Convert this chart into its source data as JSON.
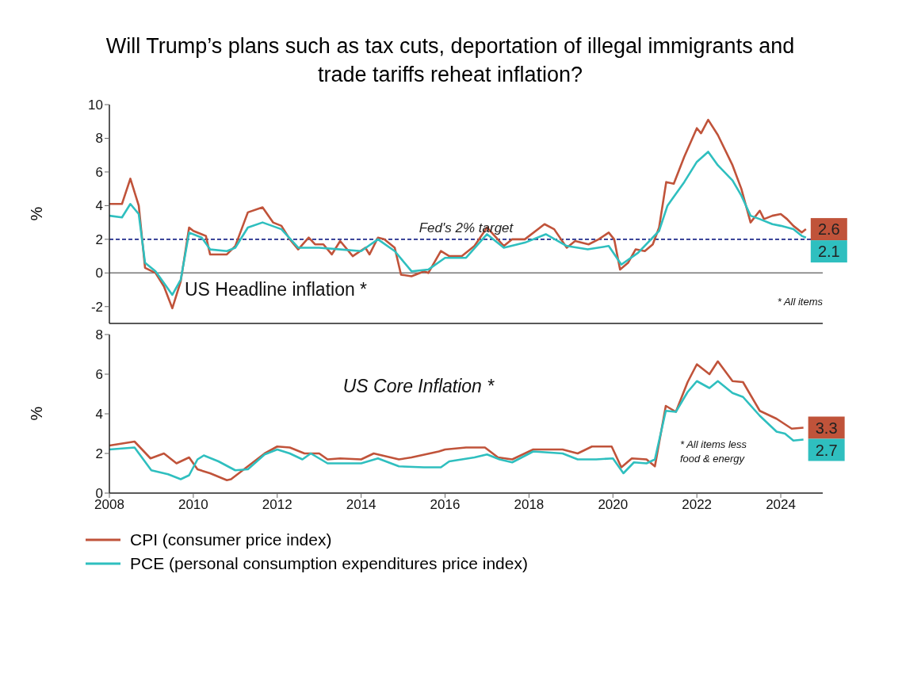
{
  "chart_data": [
    {
      "type": "line",
      "title": "Will Trump’s plans such as tax cuts, deportation of illegal immigrants and trade tariffs reheat inflation?",
      "ylabel": "%",
      "xlim": [
        2008,
        2025
      ],
      "xticks": [
        2008,
        2010,
        2012,
        2014,
        2016,
        2018,
        2020,
        2022,
        2024
      ],
      "ylim": [
        -3,
        10
      ],
      "yticks": [
        -2,
        0,
        2,
        4,
        6,
        8,
        10
      ],
      "tick_labels": "y",
      "legend": false,
      "ref_lines": [
        {
          "axis": "y",
          "value": 2,
          "label": "Fed's 2% target",
          "color": "#1f2a8a",
          "line_style": "dashed"
        },
        {
          "axis": "y",
          "value": 0,
          "label": null,
          "color": "#777777",
          "line_style": "solid"
        }
      ],
      "annotations": [
        "US Headline inflation *",
        "* All items"
      ],
      "series": [
        {
          "color": "#c0533a",
          "x": [
            2008.0,
            2008.3,
            2008.5,
            2008.7,
            2008.85,
            2009.1,
            2009.3,
            2009.5,
            2009.7,
            2009.9,
            2010.0,
            2010.2,
            2010.3,
            2010.4,
            2010.8,
            2011.0,
            2011.3,
            2011.65,
            2011.9,
            2012.1,
            2012.3,
            2012.5,
            2012.75,
            2012.9,
            2013.1,
            2013.3,
            2013.5,
            2013.8,
            2014.1,
            2014.2,
            2014.4,
            2014.55,
            2014.8,
            2014.95,
            2015.2,
            2015.5,
            2015.6,
            2015.9,
            2016.1,
            2016.4,
            2016.7,
            2017.0,
            2017.4,
            2017.6,
            2017.9,
            2018.37,
            2018.6,
            2018.9,
            2019.1,
            2019.42,
            2019.66,
            2019.9,
            2020.03,
            2020.17,
            2020.36,
            2020.54,
            2020.76,
            2020.95,
            2021.1,
            2021.27,
            2021.45,
            2021.7,
            2022.0,
            2022.1,
            2022.27,
            2022.5,
            2022.85,
            2023.06,
            2023.28,
            2023.5,
            2023.6,
            2023.8,
            2024.0,
            2024.15,
            2024.3,
            2024.5,
            2024.6
          ],
          "values": [
            4.1,
            4.1,
            5.6,
            4.0,
            0.3,
            0.0,
            -0.8,
            -2.1,
            -0.5,
            2.7,
            2.5,
            2.3,
            2.2,
            1.1,
            1.1,
            1.6,
            3.6,
            3.9,
            3.0,
            2.8,
            2.0,
            1.4,
            2.1,
            1.7,
            1.7,
            1.1,
            1.9,
            1.0,
            1.5,
            1.1,
            2.1,
            2.0,
            1.5,
            -0.1,
            -0.2,
            0.1,
            0.0,
            1.3,
            1.0,
            1.0,
            1.6,
            2.7,
            1.6,
            2.0,
            2.0,
            2.9,
            2.6,
            1.5,
            1.9,
            1.7,
            2.0,
            2.4,
            2.0,
            0.2,
            0.6,
            1.4,
            1.3,
            1.7,
            2.7,
            5.4,
            5.3,
            6.9,
            8.6,
            8.3,
            9.1,
            8.2,
            6.4,
            5.0,
            3.0,
            3.7,
            3.2,
            3.4,
            3.5,
            3.2,
            2.8,
            2.4,
            2.6
          ],
          "value_labels": [
            null,
            null,
            null,
            null,
            null,
            null,
            null,
            null,
            null,
            null,
            null,
            null,
            null,
            null,
            null,
            null,
            null,
            null,
            null,
            null,
            null,
            null,
            null,
            null,
            null,
            null,
            null,
            null,
            null,
            null,
            null,
            null,
            null,
            null,
            null,
            null,
            null,
            null,
            null,
            null,
            null,
            null,
            null,
            null,
            null,
            null,
            null,
            null,
            null,
            null,
            null,
            null,
            null,
            null,
            null,
            null,
            null,
            null,
            null,
            null,
            null,
            null,
            null,
            null,
            null,
            null,
            null,
            null,
            null,
            null,
            null,
            null,
            null,
            null,
            null,
            null,
            "2.6"
          ]
        },
        {
          "color": "#2fbfbf",
          "x": [
            2008.0,
            2008.3,
            2008.5,
            2008.7,
            2008.85,
            2009.1,
            2009.3,
            2009.5,
            2009.7,
            2009.9,
            2010.2,
            2010.4,
            2010.8,
            2011.0,
            2011.3,
            2011.65,
            2012.1,
            2012.5,
            2013.0,
            2013.5,
            2014.0,
            2014.4,
            2014.8,
            2015.2,
            2015.6,
            2016.0,
            2016.5,
            2017.0,
            2017.4,
            2017.9,
            2018.4,
            2018.9,
            2019.4,
            2019.9,
            2020.2,
            2020.6,
            2021.1,
            2021.3,
            2021.7,
            2022.0,
            2022.27,
            2022.5,
            2022.85,
            2023.06,
            2023.28,
            2023.5,
            2023.8,
            2024.0,
            2024.3,
            2024.5,
            2024.6
          ],
          "values": [
            3.4,
            3.3,
            4.1,
            3.5,
            0.6,
            0.1,
            -0.6,
            -1.3,
            -0.4,
            2.4,
            2.1,
            1.4,
            1.3,
            1.5,
            2.7,
            3.0,
            2.6,
            1.5,
            1.5,
            1.4,
            1.3,
            2.0,
            1.3,
            0.1,
            0.2,
            0.9,
            0.9,
            2.3,
            1.5,
            1.8,
            2.3,
            1.6,
            1.4,
            1.6,
            0.5,
            1.2,
            2.5,
            4.0,
            5.4,
            6.6,
            7.2,
            6.4,
            5.5,
            4.6,
            3.4,
            3.2,
            2.9,
            2.8,
            2.6,
            2.2,
            2.1
          ],
          "value_labels": [
            null,
            null,
            null,
            null,
            null,
            null,
            null,
            null,
            null,
            null,
            null,
            null,
            null,
            null,
            null,
            null,
            null,
            null,
            null,
            null,
            null,
            null,
            null,
            null,
            null,
            null,
            null,
            null,
            null,
            null,
            null,
            null,
            null,
            null,
            null,
            null,
            null,
            null,
            null,
            null,
            null,
            null,
            null,
            null,
            null,
            null,
            null,
            null,
            null,
            null,
            "2.1"
          ]
        }
      ]
    },
    {
      "type": "line",
      "ylabel": "%",
      "xlim": [
        2008,
        2025
      ],
      "xticks": [
        2008,
        2010,
        2012,
        2014,
        2016,
        2018,
        2020,
        2022,
        2024
      ],
      "ylim": [
        0,
        8
      ],
      "yticks": [
        0,
        2,
        4,
        6,
        8
      ],
      "legend": "bottom",
      "annotations": [
        "US Core Inflation *",
        "* All items less\nfood & energy"
      ],
      "series": [
        {
          "name": "CPI (consumer price index)",
          "color": "#c0533a",
          "x": [
            2008.0,
            2008.6,
            2008.98,
            2009.3,
            2009.6,
            2009.9,
            2010.1,
            2010.4,
            2010.8,
            2010.9,
            2011.3,
            2011.7,
            2012.0,
            2012.3,
            2012.65,
            2013.0,
            2013.2,
            2013.5,
            2014.0,
            2014.3,
            2014.9,
            2015.2,
            2015.85,
            2016.0,
            2016.5,
            2016.95,
            2017.26,
            2017.6,
            2018.1,
            2018.8,
            2019.16,
            2019.5,
            2019.97,
            2020.2,
            2020.45,
            2020.8,
            2021.0,
            2021.26,
            2021.5,
            2021.78,
            2022.0,
            2022.3,
            2022.5,
            2022.85,
            2023.1,
            2023.5,
            2023.9,
            2024.26,
            2024.54
          ],
          "values": [
            2.4,
            2.6,
            1.75,
            2.0,
            1.5,
            1.8,
            1.2,
            1.0,
            0.65,
            0.7,
            1.35,
            2.0,
            2.35,
            2.3,
            2.0,
            2.0,
            1.7,
            1.75,
            1.7,
            2.0,
            1.7,
            1.8,
            2.1,
            2.2,
            2.3,
            2.3,
            1.8,
            1.7,
            2.2,
            2.2,
            2.0,
            2.35,
            2.35,
            1.3,
            1.75,
            1.7,
            1.35,
            4.4,
            4.1,
            5.6,
            6.5,
            6.0,
            6.65,
            5.65,
            5.6,
            4.15,
            3.75,
            3.25,
            3.3
          ],
          "value_labels": [
            null,
            null,
            null,
            null,
            null,
            null,
            null,
            null,
            null,
            null,
            null,
            null,
            null,
            null,
            null,
            null,
            null,
            null,
            null,
            null,
            null,
            null,
            null,
            null,
            null,
            null,
            null,
            null,
            null,
            null,
            null,
            null,
            null,
            null,
            null,
            null,
            null,
            null,
            null,
            null,
            null,
            null,
            null,
            null,
            null,
            null,
            null,
            null,
            "3.3"
          ]
        },
        {
          "name": "PCE (personal consumption expenditures price index)",
          "color": "#2fbfbf",
          "x": [
            2008.0,
            2008.6,
            2009.0,
            2009.4,
            2009.7,
            2009.9,
            2010.1,
            2010.25,
            2010.6,
            2011.0,
            2011.3,
            2011.7,
            2012.0,
            2012.3,
            2012.6,
            2012.8,
            2013.2,
            2013.5,
            2014.0,
            2014.4,
            2014.9,
            2015.5,
            2015.9,
            2016.1,
            2016.7,
            2017.0,
            2017.3,
            2017.6,
            2018.1,
            2018.8,
            2019.16,
            2019.6,
            2020.0,
            2020.25,
            2020.5,
            2020.8,
            2021.0,
            2021.26,
            2021.5,
            2021.78,
            2022.0,
            2022.3,
            2022.5,
            2022.85,
            2023.1,
            2023.5,
            2023.9,
            2024.1,
            2024.3,
            2024.54
          ],
          "values": [
            2.2,
            2.3,
            1.15,
            0.95,
            0.7,
            0.9,
            1.7,
            1.9,
            1.6,
            1.15,
            1.2,
            1.95,
            2.2,
            2.0,
            1.7,
            2.0,
            1.5,
            1.5,
            1.5,
            1.75,
            1.35,
            1.3,
            1.3,
            1.6,
            1.8,
            1.95,
            1.7,
            1.55,
            2.1,
            2.0,
            1.7,
            1.7,
            1.75,
            1.0,
            1.55,
            1.5,
            1.7,
            4.15,
            4.1,
            5.1,
            5.65,
            5.3,
            5.65,
            5.05,
            4.85,
            3.9,
            3.1,
            3.0,
            2.65,
            2.7
          ],
          "value_labels": [
            null,
            null,
            null,
            null,
            null,
            null,
            null,
            null,
            null,
            null,
            null,
            null,
            null,
            null,
            null,
            null,
            null,
            null,
            null,
            null,
            null,
            null,
            null,
            null,
            null,
            null,
            null,
            null,
            null,
            null,
            null,
            null,
            null,
            null,
            null,
            null,
            null,
            null,
            null,
            null,
            null,
            null,
            null,
            null,
            null,
            null,
            null,
            null,
            null,
            "2.7"
          ]
        }
      ]
    }
  ]
}
